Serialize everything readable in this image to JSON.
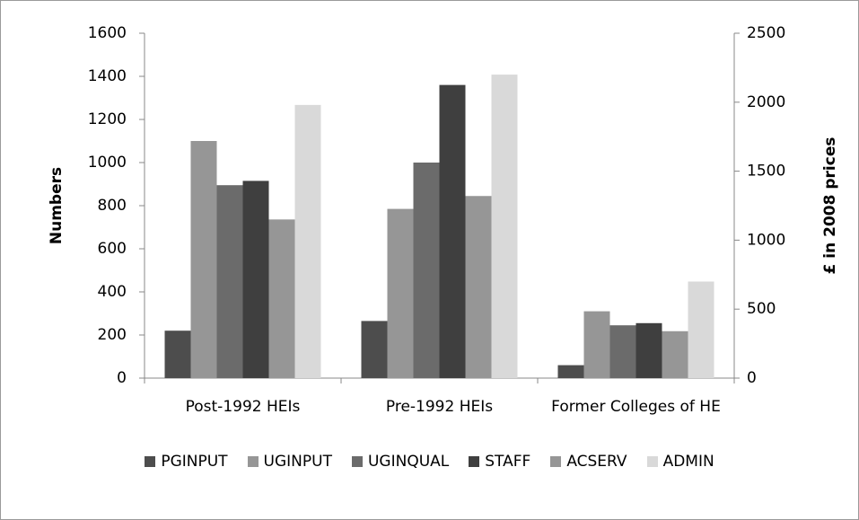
{
  "chart_data": {
    "type": "bar",
    "y_label": "Numbers",
    "y2_label": "£ in 2008 prices",
    "categories": [
      "Post-1992 HEIs",
      "Pre-1992  HEIs",
      "Former Colleges of HE"
    ],
    "series": [
      {
        "name": "PGINPUT",
        "color": "#4d4d4d",
        "values": [
          220,
          265,
          60
        ]
      },
      {
        "name": "UGINPUT",
        "color": "#969696",
        "values": [
          1100,
          785,
          310
        ]
      },
      {
        "name": "UGINQUAL",
        "color": "#6b6b6b",
        "values": [
          895,
          1000,
          245
        ]
      },
      {
        "name": "STAFF",
        "color": "#3f3f3f",
        "values": [
          915,
          1360,
          255
        ]
      },
      {
        "name": "ACSERV",
        "color": "#969696",
        "values": [
          1150,
          1320,
          340
        ],
        "axis": "y2"
      },
      {
        "name": "ADMIN",
        "color": "#d9d9d9",
        "values": [
          1980,
          2200,
          700
        ],
        "axis": "y2"
      }
    ],
    "ylim": [
      0,
      1600
    ],
    "yticks": [
      0,
      200,
      400,
      600,
      800,
      1000,
      1200,
      1400,
      1600
    ],
    "y2lim": [
      0,
      2500
    ],
    "y2ticks": [
      0,
      500,
      1000,
      1500,
      2000,
      2500
    ],
    "legend": "bottom"
  }
}
